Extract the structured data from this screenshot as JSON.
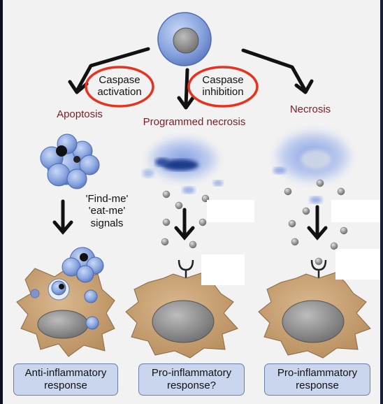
{
  "top_labels": {
    "apoptosis": "Apoptosis",
    "programmed_necrosis": "Programmed necrosis",
    "necrosis": "Necrosis"
  },
  "circled_labels": {
    "caspase_activation": [
      "Caspase",
      "activation"
    ],
    "caspase_inhibition": [
      "Caspase",
      "inhibition"
    ]
  },
  "signals": [
    "'Find-me'",
    "'eat-me'",
    "signals"
  ],
  "responses": {
    "anti": [
      "Anti-inflammatory",
      "response"
    ],
    "pro_question": [
      "Pro-inflammatory",
      "response?"
    ],
    "pro": [
      "Pro-inflammatory",
      "response"
    ]
  },
  "colors": {
    "cell_blue": "#7f9fdc",
    "macrophage": "#c8a072",
    "circle_red": "#e8321e",
    "response_box": "#c9d6ee"
  }
}
